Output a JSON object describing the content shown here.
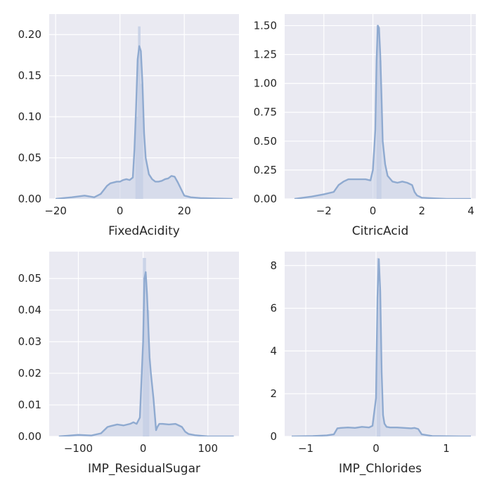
{
  "chart_data": [
    {
      "type": "area",
      "xlabel": "FixedAcidity",
      "xlim": [
        -22,
        37
      ],
      "ylim": [
        0,
        0.225
      ],
      "xticks": [
        -20,
        0,
        20
      ],
      "yticks": [
        0.0,
        0.05,
        0.1,
        0.15,
        0.2
      ],
      "ytick_labels": [
        "0.00",
        "0.05",
        "0.10",
        "0.15",
        "0.20"
      ],
      "series": [
        {
          "x": [
            -20,
            -15,
            -11,
            -8,
            -6,
            -4,
            -3,
            -1,
            0,
            1,
            2,
            3,
            4,
            4.5,
            5,
            5.5,
            6,
            6.5,
            7,
            7.5,
            8,
            9,
            10,
            11,
            12,
            13,
            14,
            15,
            16,
            17,
            18,
            19,
            20,
            22,
            25,
            30,
            35
          ],
          "y": [
            0.0,
            0.002,
            0.004,
            0.002,
            0.006,
            0.016,
            0.019,
            0.021,
            0.021,
            0.023,
            0.024,
            0.023,
            0.026,
            0.06,
            0.11,
            0.17,
            0.186,
            0.18,
            0.14,
            0.08,
            0.05,
            0.03,
            0.024,
            0.021,
            0.021,
            0.022,
            0.024,
            0.025,
            0.028,
            0.027,
            0.02,
            0.012,
            0.004,
            0.002,
            0.001,
            0.0005,
            0.0
          ]
        }
      ],
      "hist": {
        "x0": -17,
        "width": 0.8,
        "bins": [
          [
            6.0,
            0.21
          ],
          [
            6.8,
            0.14
          ],
          [
            5.2,
            0.1
          ]
        ]
      }
    },
    {
      "type": "area",
      "xlabel": "CitricAcid",
      "xlim": [
        -3.6,
        4.2
      ],
      "ylim": [
        0,
        1.6
      ],
      "xticks": [
        -2,
        0,
        2,
        4
      ],
      "yticks": [
        0.0,
        0.25,
        0.5,
        0.75,
        1.0,
        1.25,
        1.5
      ],
      "ytick_labels": [
        "0.00",
        "0.25",
        "0.50",
        "0.75",
        "1.00",
        "1.25",
        "1.50"
      ],
      "series": [
        {
          "x": [
            -3.2,
            -2.5,
            -2.0,
            -1.6,
            -1.4,
            -1.2,
            -1.0,
            -0.8,
            -0.5,
            -0.3,
            -0.1,
            0.0,
            0.1,
            0.15,
            0.2,
            0.25,
            0.3,
            0.35,
            0.4,
            0.5,
            0.6,
            0.8,
            1.0,
            1.2,
            1.4,
            1.6,
            1.7,
            1.8,
            2.0,
            2.5,
            3.0,
            4.0
          ],
          "y": [
            0.0,
            0.02,
            0.04,
            0.06,
            0.12,
            0.15,
            0.17,
            0.17,
            0.17,
            0.17,
            0.16,
            0.25,
            0.6,
            1.2,
            1.5,
            1.48,
            1.25,
            0.9,
            0.5,
            0.3,
            0.2,
            0.15,
            0.14,
            0.15,
            0.14,
            0.12,
            0.06,
            0.03,
            0.01,
            0.005,
            0.0,
            0.0
          ]
        }
      ],
      "hist": {
        "x0": -3.4,
        "width": 0.1,
        "bins": [
          [
            0.2,
            1.5
          ],
          [
            0.3,
            1.2
          ]
        ]
      }
    },
    {
      "type": "area",
      "xlabel": "IMP_ResidualSugar",
      "xlim": [
        -145,
        148
      ],
      "ylim": [
        0,
        0.0585
      ],
      "xticks": [
        -100,
        0,
        100
      ],
      "yticks": [
        0.0,
        0.01,
        0.02,
        0.03,
        0.04,
        0.05
      ],
      "ytick_labels": [
        "0.00",
        "0.01",
        "0.02",
        "0.03",
        "0.04",
        "0.05"
      ],
      "series": [
        {
          "x": [
            -130,
            -100,
            -80,
            -65,
            -60,
            -55,
            -50,
            -40,
            -30,
            -20,
            -15,
            -10,
            -5,
            0,
            2,
            4,
            6,
            8,
            10,
            12,
            14,
            16,
            18,
            20,
            22,
            25,
            30,
            40,
            50,
            55,
            60,
            65,
            70,
            80,
            100,
            120,
            140
          ],
          "y": [
            0.0,
            0.0005,
            0.0003,
            0.001,
            0.002,
            0.003,
            0.0033,
            0.0038,
            0.0035,
            0.004,
            0.0045,
            0.004,
            0.006,
            0.03,
            0.05,
            0.052,
            0.045,
            0.035,
            0.025,
            0.02,
            0.016,
            0.012,
            0.007,
            0.002,
            0.003,
            0.004,
            0.004,
            0.0038,
            0.004,
            0.0035,
            0.003,
            0.0015,
            0.0008,
            0.0004,
            0.0,
            0.0,
            0.0
          ]
        }
      ],
      "hist": {
        "x0": -130,
        "width": 5,
        "bins": [
          [
            2,
            0.0565
          ],
          [
            7,
            0.04
          ]
        ]
      }
    },
    {
      "type": "area",
      "xlabel": "IMP_Chlorides",
      "xlim": [
        -1.3,
        1.42
      ],
      "ylim": [
        0,
        8.65
      ],
      "xticks": [
        -1,
        0,
        1
      ],
      "yticks": [
        0,
        2,
        4,
        6,
        8
      ],
      "ytick_labels": [
        "0",
        "2",
        "4",
        "6",
        "8"
      ],
      "series": [
        {
          "x": [
            -1.2,
            -0.9,
            -0.7,
            -0.6,
            -0.55,
            -0.5,
            -0.4,
            -0.3,
            -0.2,
            -0.1,
            -0.05,
            0.0,
            0.02,
            0.04,
            0.06,
            0.08,
            0.1,
            0.12,
            0.15,
            0.2,
            0.3,
            0.4,
            0.5,
            0.55,
            0.6,
            0.65,
            0.8,
            1.0,
            1.2,
            1.35
          ],
          "y": [
            0.0,
            0.02,
            0.05,
            0.1,
            0.38,
            0.4,
            0.42,
            0.4,
            0.45,
            0.42,
            0.5,
            1.8,
            6.5,
            8.3,
            6.8,
            3.0,
            1.0,
            0.6,
            0.45,
            0.42,
            0.42,
            0.4,
            0.38,
            0.4,
            0.35,
            0.1,
            0.02,
            0.01,
            0.0,
            0.0
          ]
        }
      ],
      "hist": {
        "x0": -1.2,
        "width": 0.025,
        "bins": [
          [
            0.025,
            8.35
          ],
          [
            0.05,
            6.9
          ]
        ]
      }
    }
  ],
  "colors": {
    "plot_bg": "#eaeaf2",
    "grid": "#ffffff",
    "line": "#8faad0",
    "fill": "#c6d0e5",
    "text": "#262626"
  }
}
